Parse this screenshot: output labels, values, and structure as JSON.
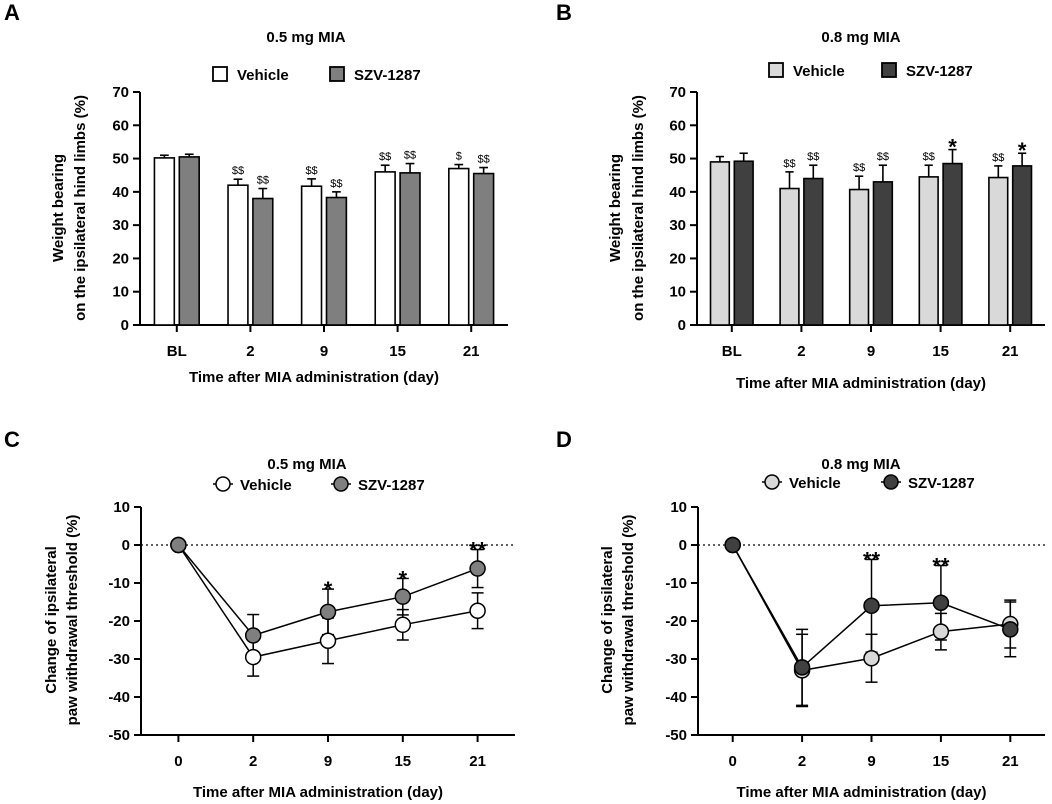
{
  "figure": {
    "panels": [
      "A",
      "B",
      "C",
      "D"
    ]
  },
  "chart_data": [
    {
      "panel": "A",
      "type": "bar",
      "title": "0.5 mg MIA",
      "xlabel": "Time after MIA administration (day)",
      "ylabel": [
        "Weight bearing",
        "on the ipsilateral hind limbs (%)"
      ],
      "categories": [
        "BL",
        "2",
        "9",
        "15",
        "21"
      ],
      "ylim": [
        0,
        70
      ],
      "yticks": [
        0,
        10,
        20,
        30,
        40,
        50,
        60,
        70
      ],
      "series": [
        {
          "name": "Vehicle",
          "color": "#ffffff",
          "values": [
            50.2,
            42.0,
            41.7,
            46.0,
            47.0
          ],
          "errors": [
            0.8,
            1.8,
            2.2,
            2.0,
            1.2
          ],
          "sig": [
            "",
            "$$",
            "$$",
            "$$",
            "$"
          ]
        },
        {
          "name": "SZV-1287",
          "color": "#7f7f7f",
          "values": [
            50.5,
            38.0,
            38.3,
            45.7,
            45.5
          ],
          "errors": [
            0.8,
            3.0,
            1.7,
            2.8,
            1.8
          ],
          "sig": [
            "",
            "$$",
            "$$",
            "$$",
            "$$"
          ]
        }
      ]
    },
    {
      "panel": "B",
      "type": "bar",
      "title": "0.8 mg MIA",
      "xlabel": "Time after MIA administration (day)",
      "ylabel": [
        "Weight bearing",
        "on the ipsilateral hind limbs (%)"
      ],
      "categories": [
        "BL",
        "2",
        "9",
        "15",
        "21"
      ],
      "ylim": [
        0,
        70
      ],
      "yticks": [
        0,
        10,
        20,
        30,
        40,
        50,
        60,
        70
      ],
      "series": [
        {
          "name": "Vehicle",
          "color": "#d9d9d9",
          "values": [
            49.0,
            41.0,
            40.7,
            44.5,
            44.3
          ],
          "errors": [
            1.6,
            5.0,
            4.0,
            3.5,
            3.5
          ],
          "sig": [
            "",
            "$$",
            "$$",
            "$$",
            "$$"
          ]
        },
        {
          "name": "SZV-1287",
          "color": "#404040",
          "values": [
            49.2,
            44.0,
            43.0,
            48.5,
            47.8
          ],
          "errors": [
            2.4,
            4.0,
            5.0,
            4.2,
            3.8
          ],
          "sig": [
            "",
            "$$",
            "$$",
            "*",
            "*"
          ]
        }
      ]
    },
    {
      "panel": "C",
      "type": "line",
      "title": "0.5 mg MIA",
      "xlabel": "Time after MIA administration (day)",
      "ylabel": [
        "Change of ipsilateral",
        "paw withdrawal threshold (%)"
      ],
      "x": [
        "0",
        "2",
        "9",
        "15",
        "21"
      ],
      "ylim": [
        -50,
        10
      ],
      "yticks": [
        10,
        0,
        -10,
        -20,
        -30,
        -40,
        -50
      ],
      "reference_line": 0,
      "annotations": [
        "",
        "",
        "*",
        "*",
        "**"
      ],
      "series": [
        {
          "name": "Vehicle",
          "color": "#ffffff",
          "values": [
            0,
            -29.5,
            -25.2,
            -21.0,
            -17.3
          ],
          "errors": [
            0,
            5.0,
            6.0,
            4.0,
            4.7
          ]
        },
        {
          "name": "SZV-1287",
          "color": "#7f7f7f",
          "values": [
            0,
            -23.8,
            -17.6,
            -13.6,
            -6.2
          ],
          "errors": [
            0,
            5.5,
            6.0,
            4.8,
            5.0
          ]
        }
      ]
    },
    {
      "panel": "D",
      "type": "line",
      "title": "0.8 mg MIA",
      "xlabel": "Time after MIA administration (day)",
      "ylabel": [
        "Change of ipsilateral",
        "paw withdrawal threshold (%)"
      ],
      "x": [
        "0",
        "2",
        "9",
        "15",
        "21"
      ],
      "ylim": [
        -50,
        10
      ],
      "yticks": [
        10,
        0,
        -10,
        -20,
        -30,
        -40,
        -50
      ],
      "reference_line": 0,
      "annotations": [
        "",
        "",
        "**",
        "**",
        ""
      ],
      "series": [
        {
          "name": "Vehicle",
          "color": "#d9d9d9",
          "values": [
            0,
            -33.0,
            -29.8,
            -22.8,
            -20.8
          ],
          "errors": [
            0,
            9.5,
            6.3,
            4.8,
            6.3
          ]
        },
        {
          "name": "SZV-1287",
          "color": "#404040",
          "values": [
            0,
            -32.2,
            -16.0,
            -15.2,
            -22.2
          ],
          "errors": [
            0,
            10.0,
            12.2,
            9.8,
            7.2
          ]
        }
      ]
    }
  ]
}
